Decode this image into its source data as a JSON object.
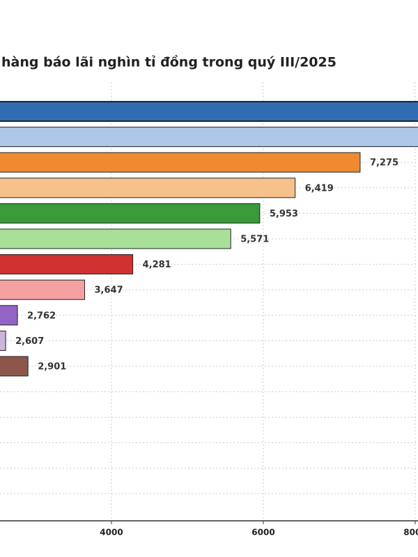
{
  "chart_data": {
    "type": "barh",
    "title": "hàng báo lãi nghìn tỉ đồng trong quý III/2025",
    "values": [
      8300,
      8150,
      7275,
      6419,
      5953,
      5571,
      4281,
      3647,
      2762,
      2607,
      2901
    ],
    "value_labels": [
      null,
      null,
      "7,275",
      "6,419",
      "5,953",
      "5,571",
      "4,281",
      "3,647",
      "2,762",
      "2,607",
      "2,901"
    ],
    "colors": [
      "#2f6db0",
      "#aec7e8",
      "#f08a30",
      "#f5c28c",
      "#3a9a3a",
      "#a8e09a",
      "#d03030",
      "#f4a0a2",
      "#9464c4",
      "#c9b6dc",
      "#8c564b"
    ],
    "xlim": [
      0,
      8037
    ],
    "xticks": [
      4000,
      6000,
      {
        "value": 8000,
        "label": "8000"
      }
    ],
    "grid": true
  }
}
